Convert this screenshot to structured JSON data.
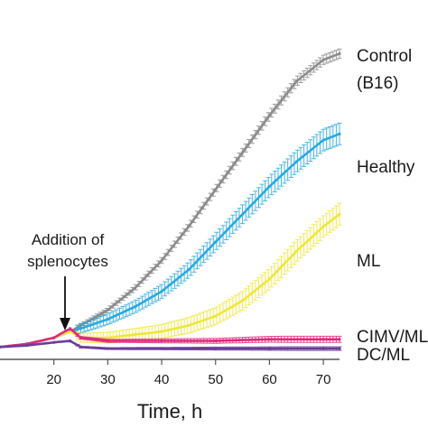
{
  "chart_data": {
    "type": "line",
    "title": "",
    "xlabel": "Time, h",
    "ylabel": "",
    "xlim": [
      10,
      73
    ],
    "ylim": [
      0,
      100
    ],
    "xticks": [
      20,
      30,
      40,
      50,
      60,
      70
    ],
    "grid": false,
    "legend": "inline-right",
    "annotation": {
      "lines": [
        "Addition of",
        "splenocytes"
      ],
      "x": 23
    },
    "series": [
      {
        "name": "Control",
        "label_lines": [
          "Control",
          "(B16)"
        ],
        "color": "#8c8c8c",
        "x": [
          10,
          15,
          20,
          23,
          25,
          30,
          35,
          40,
          45,
          50,
          55,
          60,
          65,
          70,
          73
        ],
        "y": [
          4,
          5,
          7,
          9,
          11,
          16,
          23,
          32,
          43,
          55,
          67,
          79,
          90,
          97,
          99
        ],
        "err": 1.5
      },
      {
        "name": "Healthy",
        "label_lines": [
          "Healthy"
        ],
        "color": "#27a9e1",
        "x": [
          10,
          15,
          20,
          23,
          25,
          30,
          35,
          40,
          45,
          50,
          55,
          60,
          65,
          70,
          73
        ],
        "y": [
          4,
          5,
          7,
          9,
          10,
          13,
          17,
          22,
          29,
          38,
          47,
          56,
          64,
          71,
          73
        ],
        "err": 3.5
      },
      {
        "name": "ML",
        "label_lines": [
          "ML"
        ],
        "color": "#f0e63c",
        "x": [
          10,
          15,
          20,
          23,
          25,
          30,
          35,
          40,
          45,
          50,
          55,
          60,
          65,
          70,
          73
        ],
        "y": [
          4,
          5,
          7,
          9,
          7,
          7,
          8,
          9,
          11,
          14,
          19,
          26,
          35,
          43,
          47
        ],
        "err": 3.5
      },
      {
        "name": "CIMV/ML",
        "label_lines": [
          "CIMV/ML"
        ],
        "color": "#e0287d",
        "x": [
          10,
          15,
          20,
          23,
          25,
          30,
          40,
          50,
          60,
          70,
          73
        ],
        "y": [
          4,
          5,
          7,
          10,
          7,
          6,
          6,
          6,
          6.5,
          6.5,
          6.5
        ],
        "err": 1
      },
      {
        "name": "DC/ML",
        "label_lines": [
          "DC/ML"
        ],
        "color": "#6a3d9a",
        "x": [
          10,
          15,
          20,
          23,
          25,
          30,
          40,
          50,
          60,
          70,
          73
        ],
        "y": [
          4,
          4.5,
          5.5,
          6,
          4,
          3.5,
          3.5,
          3.5,
          3.5,
          3.5,
          3.5
        ],
        "err": 0.6
      }
    ]
  }
}
